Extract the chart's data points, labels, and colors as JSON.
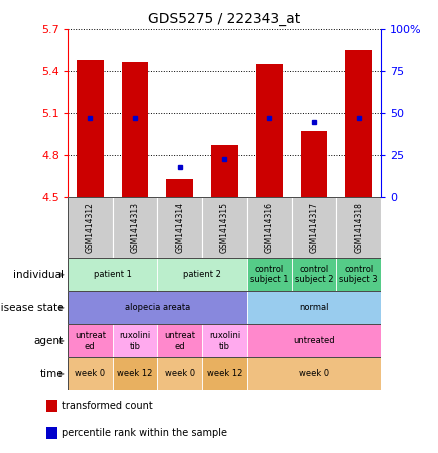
{
  "title": "GDS5275 / 222343_at",
  "samples": [
    "GSM1414312",
    "GSM1414313",
    "GSM1414314",
    "GSM1414315",
    "GSM1414316",
    "GSM1414317",
    "GSM1414318"
  ],
  "transformed_count": [
    5.48,
    5.47,
    4.63,
    4.87,
    5.45,
    4.97,
    5.55
  ],
  "percentile_rank": [
    47,
    47,
    18,
    23,
    47,
    45,
    47
  ],
  "ylim": [
    4.5,
    5.7
  ],
  "y2lim": [
    0,
    100
  ],
  "yticks": [
    4.5,
    4.8,
    5.1,
    5.4,
    5.7
  ],
  "y2ticks": [
    0,
    25,
    50,
    75,
    100
  ],
  "bar_color": "#cc0000",
  "dot_color": "#0000cc",
  "bar_width": 0.6,
  "sample_box_color": "#cccccc",
  "annotation_rows": [
    {
      "label": "individual",
      "groups": [
        {
          "text": "patient 1",
          "span": [
            0,
            2
          ],
          "color": "#bbeecc"
        },
        {
          "text": "patient 2",
          "span": [
            2,
            4
          ],
          "color": "#bbeecc"
        },
        {
          "text": "control\nsubject 1",
          "span": [
            4,
            5
          ],
          "color": "#55cc88"
        },
        {
          "text": "control\nsubject 2",
          "span": [
            5,
            6
          ],
          "color": "#55cc88"
        },
        {
          "text": "control\nsubject 3",
          "span": [
            6,
            7
          ],
          "color": "#55cc88"
        }
      ]
    },
    {
      "label": "disease state",
      "groups": [
        {
          "text": "alopecia areata",
          "span": [
            0,
            4
          ],
          "color": "#8888dd"
        },
        {
          "text": "normal",
          "span": [
            4,
            7
          ],
          "color": "#99ccee"
        }
      ]
    },
    {
      "label": "agent",
      "groups": [
        {
          "text": "untreat\ned",
          "span": [
            0,
            1
          ],
          "color": "#ff88cc"
        },
        {
          "text": "ruxolini\ntib",
          "span": [
            1,
            2
          ],
          "color": "#ffaaee"
        },
        {
          "text": "untreat\ned",
          "span": [
            2,
            3
          ],
          "color": "#ff88cc"
        },
        {
          "text": "ruxolini\ntib",
          "span": [
            3,
            4
          ],
          "color": "#ffaaee"
        },
        {
          "text": "untreated",
          "span": [
            4,
            7
          ],
          "color": "#ff88cc"
        }
      ]
    },
    {
      "label": "time",
      "groups": [
        {
          "text": "week 0",
          "span": [
            0,
            1
          ],
          "color": "#f0c080"
        },
        {
          "text": "week 12",
          "span": [
            1,
            2
          ],
          "color": "#e8b060"
        },
        {
          "text": "week 0",
          "span": [
            2,
            3
          ],
          "color": "#f0c080"
        },
        {
          "text": "week 12",
          "span": [
            3,
            4
          ],
          "color": "#e8b060"
        },
        {
          "text": "week 0",
          "span": [
            4,
            7
          ],
          "color": "#f0c080"
        }
      ]
    }
  ],
  "legend": [
    {
      "color": "#cc0000",
      "label": "transformed count"
    },
    {
      "color": "#0000cc",
      "label": "percentile rank within the sample"
    }
  ],
  "fig_width": 4.38,
  "fig_height": 4.53,
  "dpi": 100
}
